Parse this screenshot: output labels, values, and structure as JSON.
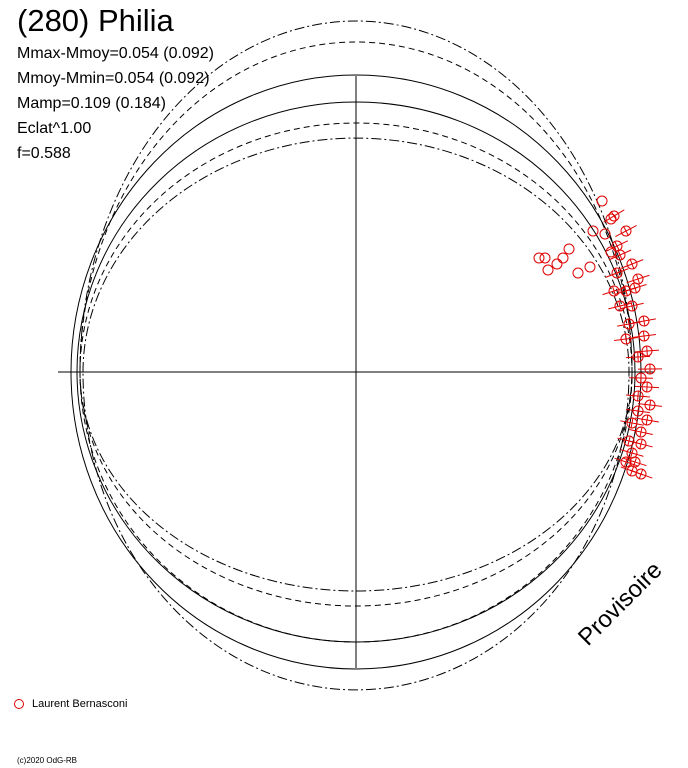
{
  "title": "(280) Philia",
  "stats": [
    "Mmax-Mmoy=0.054 (0.092)",
    "Mmoy-Mmin=0.054 (0.092)",
    "Mamp=0.109 (0.184)",
    "Eclat^1.00",
    "f=0.588"
  ],
  "legend": {
    "label": "Laurent Bernasconi",
    "color": "#e00000"
  },
  "copyright": "(c)2020 OdG-RB",
  "watermark": "Provisoire",
  "chart_data": {
    "type": "scatter",
    "projection": "polar",
    "title": "(280) Philia",
    "grid": false,
    "axes": "cross",
    "series": [
      {
        "name": "Laurent Bernasconi",
        "color": "#e00000",
        "marker": "open-circle",
        "error_bars": true,
        "points": [
          [
            0.82,
            0.57
          ],
          [
            0.86,
            0.52
          ],
          [
            0.85,
            0.51
          ],
          [
            0.83,
            0.46
          ],
          [
            0.79,
            0.47
          ],
          [
            0.9,
            0.47
          ],
          [
            0.85,
            0.4
          ],
          [
            0.87,
            0.42
          ],
          [
            0.88,
            0.39
          ],
          [
            0.92,
            0.36
          ],
          [
            0.87,
            0.33
          ],
          [
            0.94,
            0.31
          ],
          [
            0.93,
            0.28
          ],
          [
            0.9,
            0.27
          ],
          [
            0.86,
            0.27
          ],
          [
            0.88,
            0.22
          ],
          [
            0.92,
            0.22
          ],
          [
            0.96,
            0.17
          ],
          [
            0.91,
            0.16
          ],
          [
            0.96,
            0.12
          ],
          [
            0.9,
            0.11
          ],
          [
            0.97,
            0.07
          ],
          [
            0.94,
            0.05
          ],
          [
            0.98,
            0.01
          ],
          [
            0.95,
            -0.02
          ],
          [
            0.97,
            -0.05
          ],
          [
            0.94,
            -0.08
          ],
          [
            0.98,
            -0.11
          ],
          [
            0.94,
            -0.13
          ],
          [
            0.97,
            -0.16
          ],
          [
            0.92,
            -0.17
          ],
          [
            0.95,
            -0.2
          ],
          [
            0.91,
            -0.23
          ],
          [
            0.95,
            -0.24
          ],
          [
            0.92,
            -0.27
          ],
          [
            0.93,
            -0.3
          ],
          [
            0.9,
            -0.3
          ],
          [
            0.92,
            -0.33
          ],
          [
            0.95,
            -0.34
          ],
          [
            0.67,
            0.36
          ],
          [
            0.69,
            0.38
          ],
          [
            0.61,
            0.38
          ],
          [
            0.71,
            0.41
          ],
          [
            0.74,
            0.33
          ],
          [
            0.64,
            0.34
          ],
          [
            0.78,
            0.35
          ],
          [
            0.63,
            0.38
          ]
        ]
      }
    ],
    "reference_curves": [
      {
        "style": "solid",
        "rx": 0.95,
        "ry_top": 0.99,
        "ry_bottom": 0.99
      },
      {
        "style": "solid",
        "rx": 0.93,
        "ry_top": 0.9,
        "ry_bottom": 0.9
      },
      {
        "style": "dashed",
        "rx": 0.92,
        "ry_top": 0.83,
        "ry_bottom": 0.9
      },
      {
        "style": "dashed",
        "rx": 0.92,
        "ry_top": 1.1,
        "ry_bottom": 0.78
      },
      {
        "style": "dashdot",
        "rx": 0.92,
        "ry_top": 1.17,
        "ry_bottom": 0.73
      },
      {
        "style": "dashdot",
        "rx": 0.91,
        "ry_top": 0.78,
        "ry_bottom": 1.06
      }
    ]
  }
}
